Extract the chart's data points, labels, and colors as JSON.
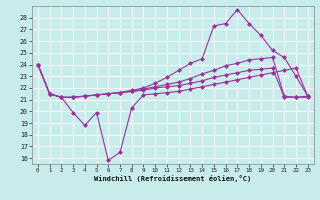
{
  "xlabel": "Windchill (Refroidissement éolien,°C)",
  "x": [
    0,
    1,
    2,
    3,
    4,
    5,
    6,
    7,
    8,
    9,
    10,
    11,
    12,
    13,
    14,
    15,
    16,
    17,
    18,
    19,
    20,
    21,
    22,
    23
  ],
  "line_max": [
    24.0,
    21.5,
    21.2,
    21.2,
    21.3,
    21.4,
    21.5,
    21.6,
    21.8,
    22.0,
    22.4,
    22.9,
    23.5,
    24.1,
    24.5,
    27.3,
    27.5,
    28.7,
    27.5,
    26.5,
    25.2,
    24.6,
    23.0,
    21.3
  ],
  "line_avg": [
    24.0,
    21.5,
    21.2,
    21.2,
    21.3,
    21.4,
    21.5,
    21.6,
    21.7,
    21.9,
    22.1,
    22.3,
    22.5,
    22.8,
    23.2,
    23.5,
    23.9,
    24.1,
    24.4,
    24.5,
    24.6,
    21.3,
    21.2,
    21.3
  ],
  "line_min": [
    24.0,
    21.5,
    21.2,
    21.2,
    21.3,
    21.4,
    21.5,
    21.6,
    21.7,
    21.8,
    22.0,
    22.1,
    22.2,
    22.4,
    22.6,
    22.9,
    23.1,
    23.3,
    23.5,
    23.6,
    23.7,
    21.2,
    21.2,
    21.2
  ],
  "line_cold": [
    24.0,
    21.5,
    21.2,
    19.9,
    18.8,
    19.9,
    15.8,
    16.5,
    20.3,
    21.4,
    21.5,
    21.6,
    21.7,
    21.9,
    22.1,
    22.3,
    22.5,
    22.7,
    22.9,
    23.1,
    23.3,
    23.5,
    23.7,
    21.3
  ],
  "bg_color": "#c8ecec",
  "line_color": "#993399",
  "grid_color": "#ffffff",
  "ylim": [
    15.5,
    29.0
  ],
  "xlim": [
    -0.5,
    23.5
  ],
  "yticks": [
    16,
    17,
    18,
    19,
    20,
    21,
    22,
    23,
    24,
    25,
    26,
    27,
    28
  ],
  "xticks": [
    0,
    1,
    2,
    3,
    4,
    5,
    6,
    7,
    8,
    9,
    10,
    11,
    12,
    13,
    14,
    15,
    16,
    17,
    18,
    19,
    20,
    21,
    22,
    23
  ]
}
